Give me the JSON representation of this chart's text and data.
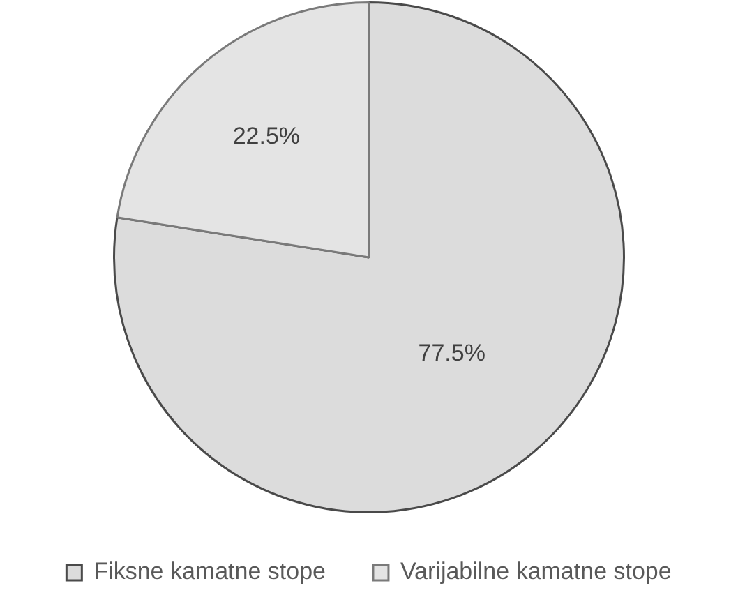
{
  "chart_data": {
    "type": "pie",
    "categories": [
      "Fiksne kamatne stope",
      "Varijabilne kamatne stope"
    ],
    "values": [
      77.5,
      22.5
    ],
    "value_labels": [
      "77.5%",
      "22.5%"
    ],
    "colors": [
      "#dcdcdc",
      "#e4e4e4"
    ],
    "legend": "bottom"
  }
}
